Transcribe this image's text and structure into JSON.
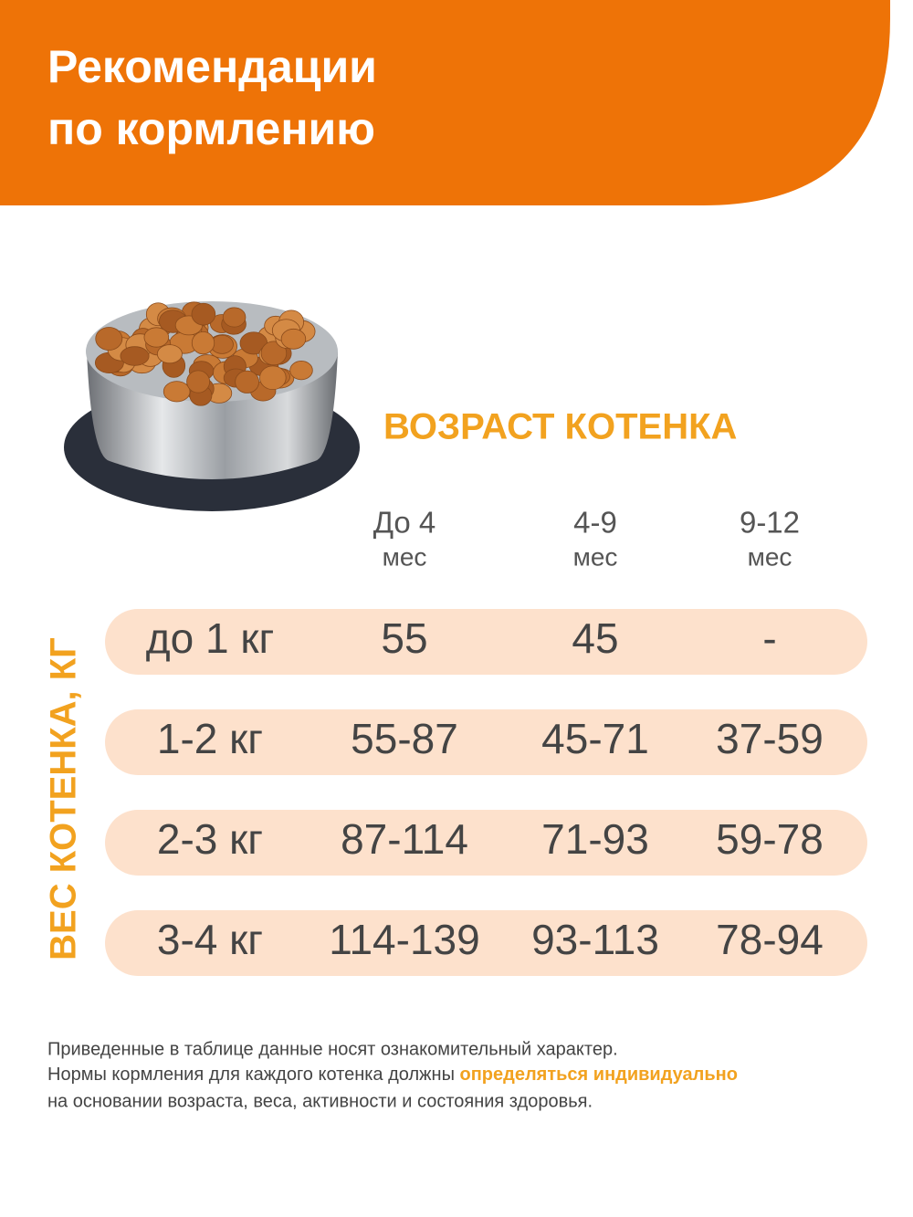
{
  "header": {
    "title_lines": [
      "Рекомендации",
      "по кормлению"
    ]
  },
  "table": {
    "column_group": "ВОЗРАСТ КОТЕНКА",
    "row_group": "ВЕС КОТЕНКА, КГ",
    "columns": [
      [
        "До 4",
        "мес"
      ],
      [
        "4-9",
        "мес"
      ],
      [
        "9-12",
        "мес"
      ]
    ],
    "rows": [
      [
        "до 1 кг",
        "55",
        "45",
        "-"
      ],
      [
        "1-2 кг",
        "55-87",
        "45-71",
        "37-59"
      ],
      [
        "2-3 кг",
        "87-114",
        "71-93",
        "59-78"
      ],
      [
        "3-4 кг",
        "114-139",
        "93-113",
        "78-94"
      ]
    ]
  },
  "footnote": {
    "line1": "Приведенные в таблице данные носят ознакомительный характер.",
    "line2_before": "Нормы кормления для каждого котенка должны ",
    "line2_highlight": "определяться индивидуально",
    "line3": "на основании возраста, веса, активности и состояния здоровья."
  }
}
